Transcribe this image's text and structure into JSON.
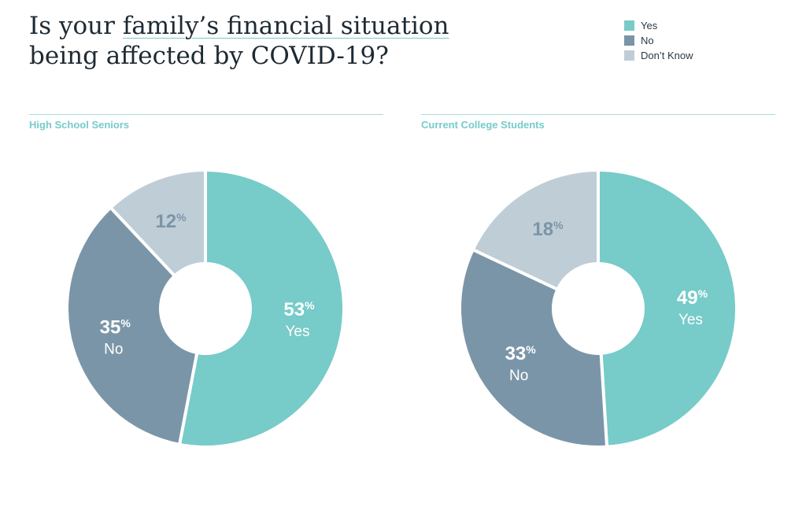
{
  "title": {
    "pre": "Is your ",
    "highlight": "family’s financial situation",
    "post": " being affected by COVID-19?"
  },
  "legend": [
    {
      "label": "Yes",
      "color": "#77cbc9"
    },
    {
      "label": "No",
      "color": "#7b95a8"
    },
    {
      "label": "Don’t Know",
      "color": "#bfcdd6"
    }
  ],
  "chart_data": [
    {
      "type": "pie",
      "title": "High School Seniors",
      "categories": [
        "Yes",
        "No",
        "Don’t Know"
      ],
      "values": [
        53,
        35,
        12
      ],
      "labels": [
        "53%",
        "35%",
        "12%"
      ]
    },
    {
      "type": "pie",
      "title": "Current College Students",
      "categories": [
        "Yes",
        "No",
        "Don’t Know"
      ],
      "values": [
        49,
        33,
        18
      ],
      "labels": [
        "49%",
        "33%",
        "18%"
      ]
    }
  ]
}
